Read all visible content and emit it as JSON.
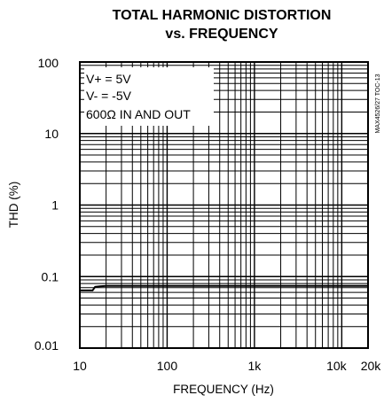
{
  "chart_data": {
    "type": "line",
    "title_lines": [
      "TOTAL HARMONIC DISTORTION",
      "vs. FREQUENCY"
    ],
    "xlabel": "FREQUENCY (Hz)",
    "ylabel": "THD (%)",
    "x_scale": "log",
    "y_scale": "log",
    "xlim": [
      10,
      20000
    ],
    "ylim": [
      0.01,
      100
    ],
    "x_ticks": [
      {
        "value": 10,
        "label": "10"
      },
      {
        "value": 100,
        "label": "100"
      },
      {
        "value": 1000,
        "label": "1k"
      },
      {
        "value": 10000,
        "label": "10k"
      },
      {
        "value": 20000,
        "label": "20k"
      }
    ],
    "y_ticks": [
      {
        "value": 100,
        "label": "100"
      },
      {
        "value": 10,
        "label": "10"
      },
      {
        "value": 1,
        "label": "1"
      },
      {
        "value": 0.1,
        "label": "0.1"
      },
      {
        "value": 0.01,
        "label": "0.01"
      }
    ],
    "grid": true,
    "annotations": [
      "V+ = 5V",
      "V- = -5V",
      "600Ω IN AND OUT"
    ],
    "side_note": "MAX4526/27 TOC-13",
    "series": [
      {
        "x": [
          10,
          14,
          15,
          17,
          20,
          50,
          100,
          1000,
          10000,
          20000
        ],
        "y": [
          0.064,
          0.064,
          0.072,
          0.073,
          0.074,
          0.074,
          0.074,
          0.074,
          0.074,
          0.074
        ]
      }
    ]
  }
}
